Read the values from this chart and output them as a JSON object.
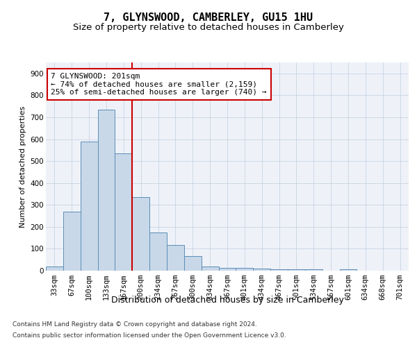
{
  "title": "7, GLYNSWOOD, CAMBERLEY, GU15 1HU",
  "subtitle": "Size of property relative to detached houses in Camberley",
  "xlabel": "Distribution of detached houses by size in Camberley",
  "ylabel": "Number of detached properties",
  "categories": [
    "33sqm",
    "67sqm",
    "100sqm",
    "133sqm",
    "167sqm",
    "200sqm",
    "234sqm",
    "267sqm",
    "300sqm",
    "334sqm",
    "367sqm",
    "401sqm",
    "434sqm",
    "467sqm",
    "501sqm",
    "534sqm",
    "567sqm",
    "601sqm",
    "634sqm",
    "668sqm",
    "701sqm"
  ],
  "values": [
    20,
    270,
    590,
    735,
    535,
    335,
    175,
    118,
    67,
    20,
    12,
    12,
    8,
    6,
    5,
    5,
    0,
    5,
    0,
    0,
    0
  ],
  "bar_color": "#c8d8e8",
  "bar_edge_color": "#5b8db8",
  "vline_color": "#cc0000",
  "annotation_line1": "7 GLYNSWOOD: 201sqm",
  "annotation_line2": "← 74% of detached houses are smaller (2,159)",
  "annotation_line3": "25% of semi-detached houses are larger (740) →",
  "annotation_box_facecolor": "#ffffff",
  "annotation_box_edgecolor": "#cc0000",
  "ylim": [
    0,
    950
  ],
  "yticks": [
    0,
    100,
    200,
    300,
    400,
    500,
    600,
    700,
    800,
    900
  ],
  "grid_color": "#c8d4e4",
  "bg_color": "#eef2f8",
  "footnote_line1": "Contains HM Land Registry data © Crown copyright and database right 2024.",
  "footnote_line2": "Contains public sector information licensed under the Open Government Licence v3.0.",
  "title_fontsize": 11,
  "subtitle_fontsize": 9.5,
  "xlabel_fontsize": 9,
  "ylabel_fontsize": 8,
  "tick_fontsize": 7.5,
  "annotation_fontsize": 8,
  "footnote_fontsize": 6.5
}
